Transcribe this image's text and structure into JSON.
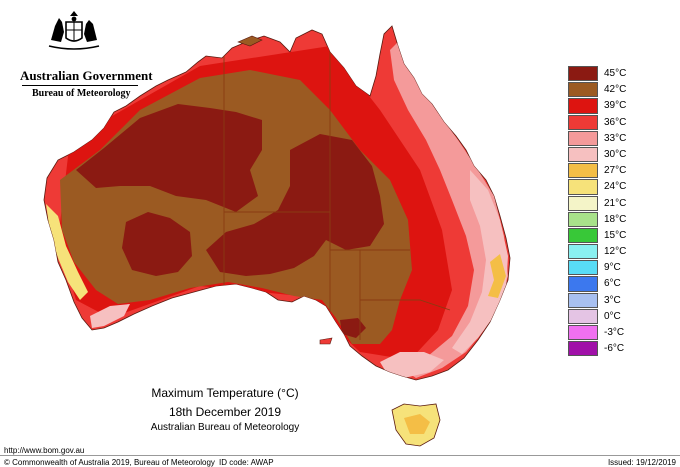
{
  "header": {
    "government": "Australian Government",
    "bureau": "Bureau of Meteorology"
  },
  "map": {
    "title": "Maximum Temperature (°C)",
    "date": "18th December 2019",
    "source": "Australian Bureau of Meteorology",
    "colors": {
      "ocean": "#ffffff",
      "state_borders": "#8a3b12"
    }
  },
  "legend": [
    {
      "label": "45°C",
      "color": "#8b1a12"
    },
    {
      "label": "42°C",
      "color": "#9b5a22"
    },
    {
      "label": "39°C",
      "color": "#dd1410"
    },
    {
      "label": "36°C",
      "color": "#ee3a36"
    },
    {
      "label": "33°C",
      "color": "#f49a9a"
    },
    {
      "label": "30°C",
      "color": "#f6c0c0"
    },
    {
      "label": "27°C",
      "color": "#f4be46"
    },
    {
      "label": "24°C",
      "color": "#f6e27a"
    },
    {
      "label": "21°C",
      "color": "#f4f4c8"
    },
    {
      "label": "18°C",
      "color": "#a8e28a"
    },
    {
      "label": "15°C",
      "color": "#38c838"
    },
    {
      "label": "12°C",
      "color": "#8af0f0"
    },
    {
      "label": "9°C",
      "color": "#58dcf6"
    },
    {
      "label": "6°C",
      "color": "#3c78ee"
    },
    {
      "label": "3°C",
      "color": "#a8c0f0"
    },
    {
      "label": "0°C",
      "color": "#e4c4e4"
    },
    {
      "label": "-3°C",
      "color": "#f070f0"
    },
    {
      "label": "-6°C",
      "color": "#a010a8"
    }
  ],
  "footer": {
    "url": "http://www.bom.gov.au",
    "copyright": "© Commonwealth of Australia 2019, Bureau of Meteorology",
    "id_code": "ID code: AWAP",
    "issued": "Issued: 19/12/2019"
  }
}
